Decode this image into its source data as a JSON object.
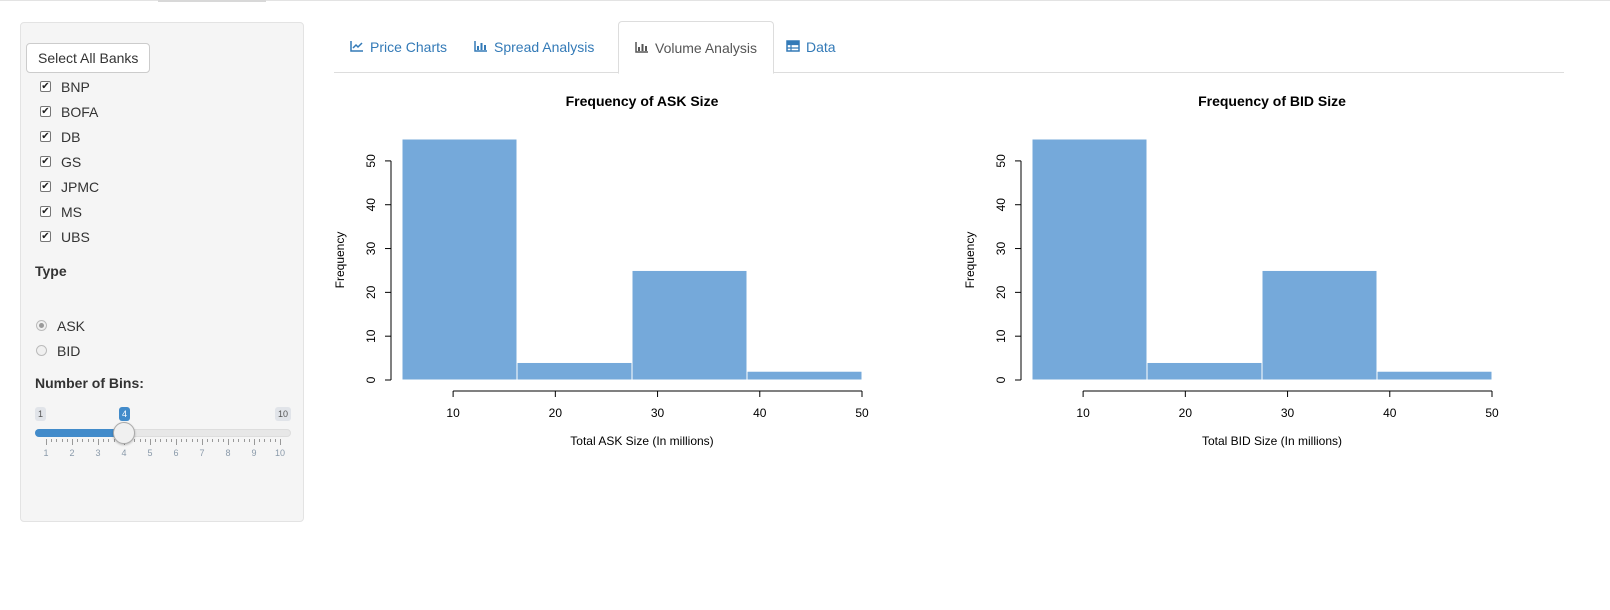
{
  "sidebar": {
    "select_all_label": "Select All Banks",
    "banks": [
      {
        "label": "BNP",
        "checked": true
      },
      {
        "label": "BOFA",
        "checked": true
      },
      {
        "label": "DB",
        "checked": true
      },
      {
        "label": "GS",
        "checked": true
      },
      {
        "label": "JPMC",
        "checked": true
      },
      {
        "label": "MS",
        "checked": true
      },
      {
        "label": "UBS",
        "checked": true
      }
    ],
    "type_label": "Type",
    "type_options": [
      {
        "label": "ASK",
        "selected": true
      },
      {
        "label": "BID",
        "selected": false
      }
    ],
    "bins_label": "Number of Bins:",
    "bins_slider": {
      "min": 1,
      "max": 10,
      "value": 4,
      "min_label": "1",
      "max_label": "10",
      "value_label": "4",
      "tick_labels": [
        "1",
        "2",
        "3",
        "4",
        "5",
        "6",
        "7",
        "8",
        "9",
        "10"
      ]
    }
  },
  "tabs": [
    {
      "label": "Price Charts",
      "icon": "line-chart-icon",
      "active": false
    },
    {
      "label": "Spread Analysis",
      "icon": "bar-chart-icon",
      "active": false
    },
    {
      "label": "Volume Analysis",
      "icon": "bar-chart-icon",
      "active": true
    },
    {
      "label": "Data",
      "icon": "table-icon",
      "active": false
    }
  ],
  "colors": {
    "bar": "#75a9da",
    "link": "#337ab7",
    "accent": "#428bca"
  },
  "chart_data": [
    {
      "type": "bar",
      "title": "Frequency of ASK Size",
      "xlabel": "Total ASK Size (In millions)",
      "ylabel": "Frequency",
      "bins": [
        [
          5,
          16.25
        ],
        [
          16.25,
          27.5
        ],
        [
          27.5,
          38.75
        ],
        [
          38.75,
          50
        ]
      ],
      "values": [
        55,
        4,
        25,
        2
      ],
      "xlim": [
        5,
        50
      ],
      "ylim": [
        0,
        55
      ],
      "xticks": [
        10,
        20,
        30,
        40,
        50
      ],
      "yticks": [
        0,
        10,
        20,
        30,
        40,
        50
      ],
      "grid": false
    },
    {
      "type": "bar",
      "title": "Frequency of BID Size",
      "xlabel": "Total BID Size (In millions)",
      "ylabel": "Frequency",
      "bins": [
        [
          5,
          16.25
        ],
        [
          16.25,
          27.5
        ],
        [
          27.5,
          38.75
        ],
        [
          38.75,
          50
        ]
      ],
      "values": [
        55,
        4,
        25,
        2
      ],
      "xlim": [
        5,
        50
      ],
      "ylim": [
        0,
        55
      ],
      "xticks": [
        10,
        20,
        30,
        40,
        50
      ],
      "yticks": [
        0,
        10,
        20,
        30,
        40,
        50
      ],
      "grid": false
    }
  ]
}
